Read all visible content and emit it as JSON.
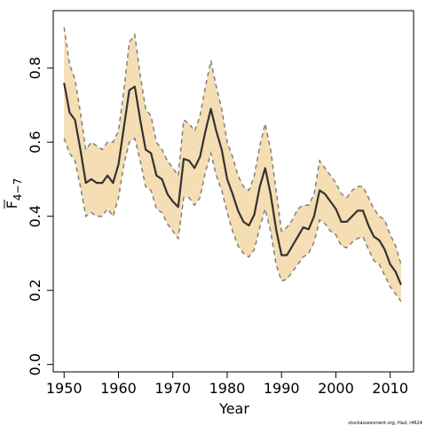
{
  "chart_data": {
    "type": "line",
    "xlabel": "Year",
    "ylabel_main": "F",
    "ylabel_sub": "4−7",
    "credit": "stockassessment.org, Had, r4624",
    "xlim": [
      1948,
      2014.3
    ],
    "ylim": [
      -0.02,
      0.955
    ],
    "x_ticks": [
      1950,
      1960,
      1970,
      1980,
      1990,
      2000,
      2010
    ],
    "y_ticks": [
      0.0,
      0.2,
      0.4,
      0.6,
      0.8
    ],
    "y_tick_labels": [
      "0.0",
      "0.2",
      "0.4",
      "0.6",
      "0.8"
    ],
    "colors": {
      "band": "#f5deb3",
      "bound_line": "#808080",
      "estimate_line": "#333333"
    },
    "years": [
      1950,
      1951,
      1952,
      1953,
      1954,
      1955,
      1956,
      1957,
      1958,
      1959,
      1960,
      1961,
      1962,
      1963,
      1964,
      1965,
      1966,
      1967,
      1968,
      1969,
      1970,
      1971,
      1972,
      1973,
      1974,
      1975,
      1976,
      1977,
      1978,
      1979,
      1980,
      1981,
      1982,
      1983,
      1984,
      1985,
      1986,
      1987,
      1988,
      1989,
      1990,
      1991,
      1992,
      1993,
      1994,
      1995,
      1996,
      1997,
      1998,
      1999,
      2000,
      2001,
      2002,
      2003,
      2004,
      2005,
      2006,
      2007,
      2008,
      2009,
      2010,
      2011,
      2012
    ],
    "series": [
      {
        "role": "estimate",
        "values": [
          0.76,
          0.68,
          0.66,
          0.58,
          0.49,
          0.5,
          0.49,
          0.49,
          0.51,
          0.49,
          0.54,
          0.64,
          0.74,
          0.75,
          0.66,
          0.58,
          0.57,
          0.51,
          0.5,
          0.46,
          0.44,
          0.425,
          0.555,
          0.55,
          0.53,
          0.56,
          0.63,
          0.69,
          0.63,
          0.58,
          0.5,
          0.46,
          0.415,
          0.385,
          0.375,
          0.405,
          0.48,
          0.53,
          0.46,
          0.365,
          0.295,
          0.295,
          0.32,
          0.345,
          0.37,
          0.365,
          0.4,
          0.47,
          0.46,
          0.44,
          0.42,
          0.385,
          0.385,
          0.4,
          0.415,
          0.415,
          0.375,
          0.345,
          0.335,
          0.31,
          0.27,
          0.25,
          0.215
        ]
      },
      {
        "role": "upper",
        "values": [
          0.91,
          0.81,
          0.77,
          0.68,
          0.58,
          0.6,
          0.59,
          0.58,
          0.6,
          0.6,
          0.63,
          0.74,
          0.87,
          0.89,
          0.78,
          0.69,
          0.67,
          0.6,
          0.58,
          0.55,
          0.53,
          0.51,
          0.66,
          0.65,
          0.63,
          0.67,
          0.75,
          0.82,
          0.75,
          0.69,
          0.6,
          0.56,
          0.51,
          0.48,
          0.47,
          0.51,
          0.59,
          0.65,
          0.58,
          0.47,
          0.36,
          0.37,
          0.39,
          0.42,
          0.43,
          0.43,
          0.46,
          0.55,
          0.53,
          0.51,
          0.49,
          0.46,
          0.45,
          0.47,
          0.48,
          0.48,
          0.45,
          0.42,
          0.4,
          0.39,
          0.35,
          0.32,
          0.27
        ]
      },
      {
        "role": "lower",
        "values": [
          0.61,
          0.57,
          0.55,
          0.48,
          0.4,
          0.41,
          0.4,
          0.4,
          0.42,
          0.4,
          0.45,
          0.54,
          0.6,
          0.61,
          0.55,
          0.48,
          0.47,
          0.42,
          0.41,
          0.38,
          0.36,
          0.34,
          0.45,
          0.45,
          0.43,
          0.45,
          0.52,
          0.57,
          0.51,
          0.47,
          0.41,
          0.36,
          0.32,
          0.3,
          0.29,
          0.31,
          0.37,
          0.42,
          0.36,
          0.27,
          0.225,
          0.23,
          0.25,
          0.27,
          0.29,
          0.3,
          0.33,
          0.39,
          0.38,
          0.36,
          0.35,
          0.32,
          0.315,
          0.33,
          0.34,
          0.345,
          0.31,
          0.28,
          0.27,
          0.24,
          0.21,
          0.19,
          0.17
        ]
      }
    ]
  }
}
